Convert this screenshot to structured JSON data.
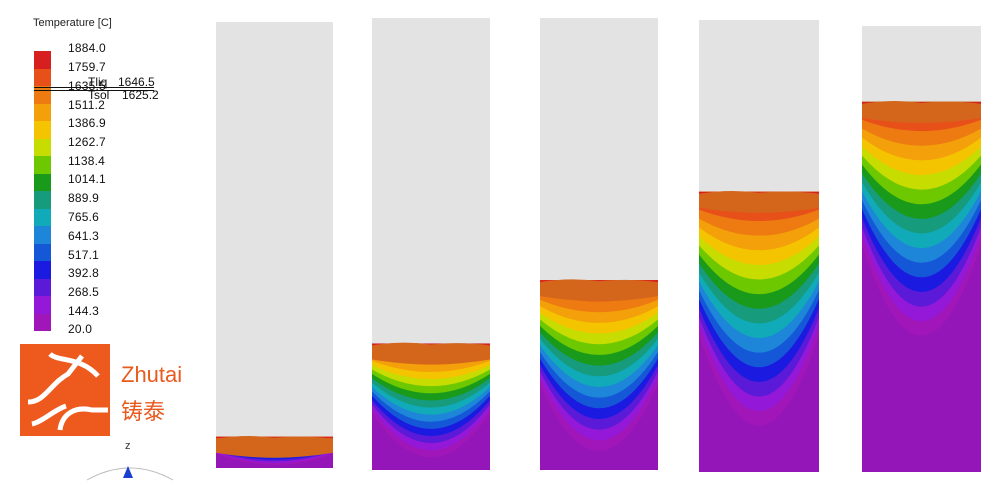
{
  "legend": {
    "title": "Temperature [C]",
    "labels": [
      "1884.0",
      "1759.7",
      "1635.5",
      "1511.2",
      "1386.9",
      "1262.7",
      "1138.4",
      "1014.1",
      "889.9",
      "765.6",
      "641.3",
      "517.1",
      "392.8",
      "268.5",
      "144.3",
      "20.0"
    ],
    "colors": [
      "#d81f1f",
      "#e8501a",
      "#ee7a12",
      "#f4a00a",
      "#f5c400",
      "#c7dc00",
      "#6ec800",
      "#1a9a1a",
      "#169b7c",
      "#11aab8",
      "#1e86d8",
      "#1458d8",
      "#1a1ae0",
      "#5a1ad8",
      "#9418d8",
      "#a016b8"
    ],
    "tliq_label": "Tliq",
    "tliq_value": "1646.5",
    "tsol_label": "Tsol",
    "tsol_value": "1625.2"
  },
  "logo": {
    "text_en": "Zhutai",
    "text_cn": "铸泰",
    "color": "#ee5a1e"
  },
  "axis": {
    "label": "z"
  },
  "pillars": [
    {
      "fill_fraction": 0.07
    },
    {
      "fill_fraction": 0.28
    },
    {
      "fill_fraction": 0.42
    },
    {
      "fill_fraction": 0.62
    },
    {
      "fill_fraction": 0.83
    }
  ]
}
